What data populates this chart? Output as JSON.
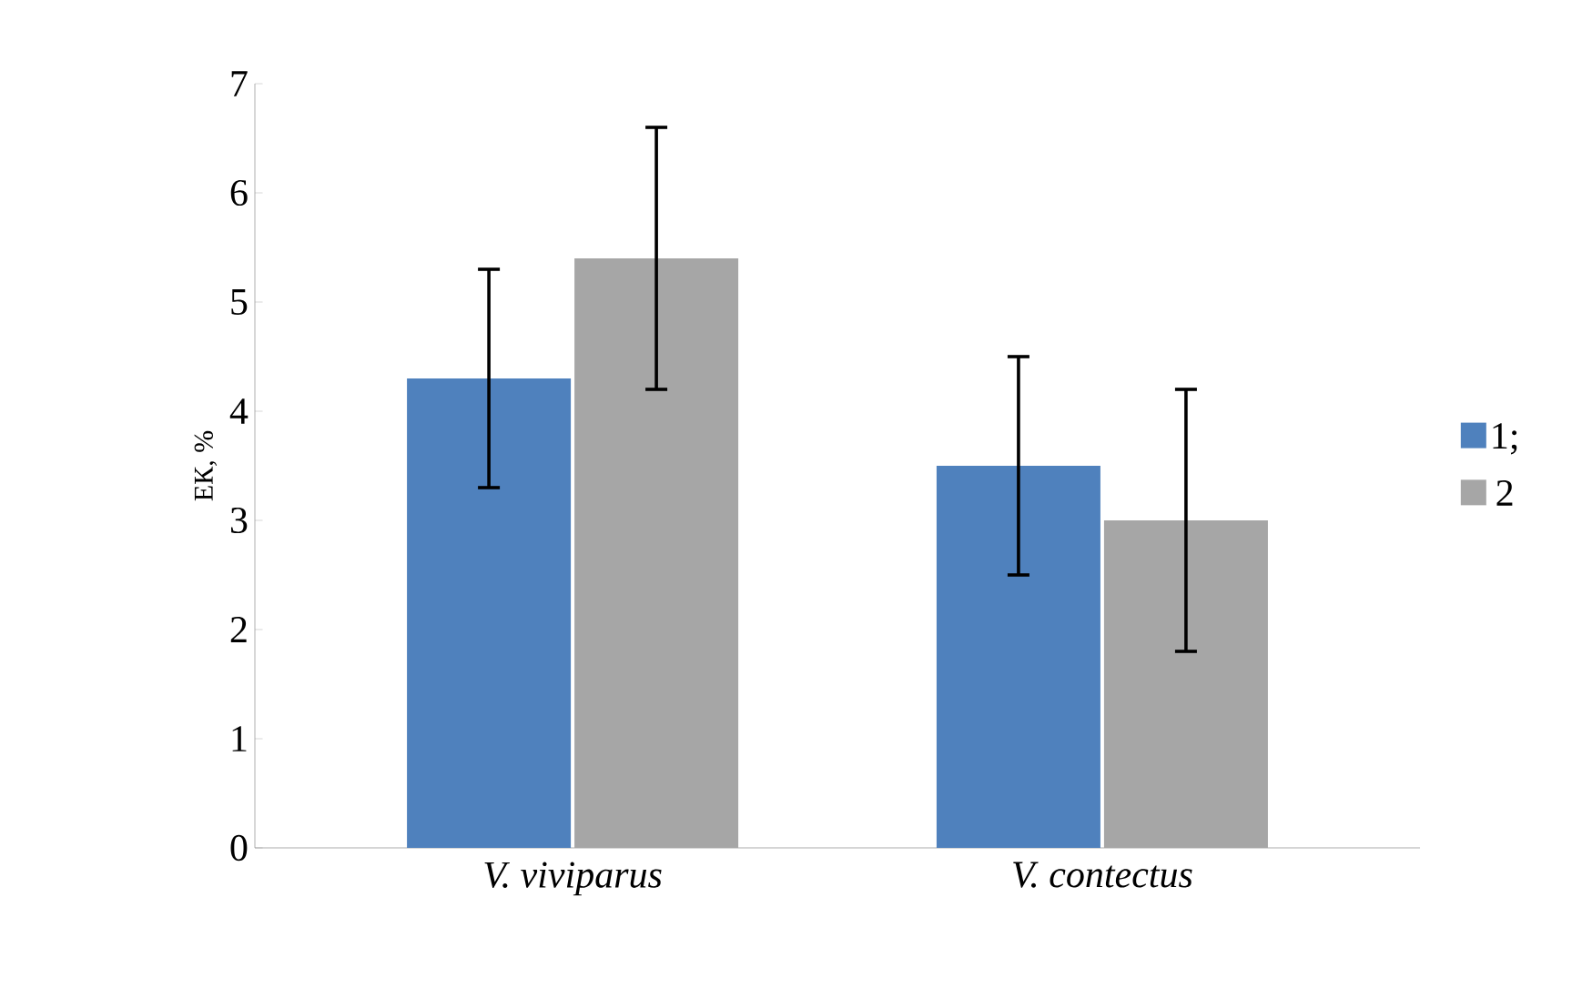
{
  "chart_data": {
    "type": "bar",
    "ylabel": "ЕК, %",
    "categories": [
      "V. viviparus",
      "V. contectus"
    ],
    "series": [
      {
        "name": "1;",
        "color": "#4f81bd",
        "values": [
          4.3,
          3.5
        ],
        "errors": [
          1,
          1
        ]
      },
      {
        "name": "2",
        "color": "#a6a6a6",
        "values": [
          5.4,
          3.0
        ],
        "errors": [
          1.2,
          1.2
        ]
      }
    ],
    "ylim": [
      0,
      7
    ],
    "yticks": [
      0,
      1,
      2,
      3,
      4,
      5,
      6,
      7
    ],
    "legend": "right"
  }
}
